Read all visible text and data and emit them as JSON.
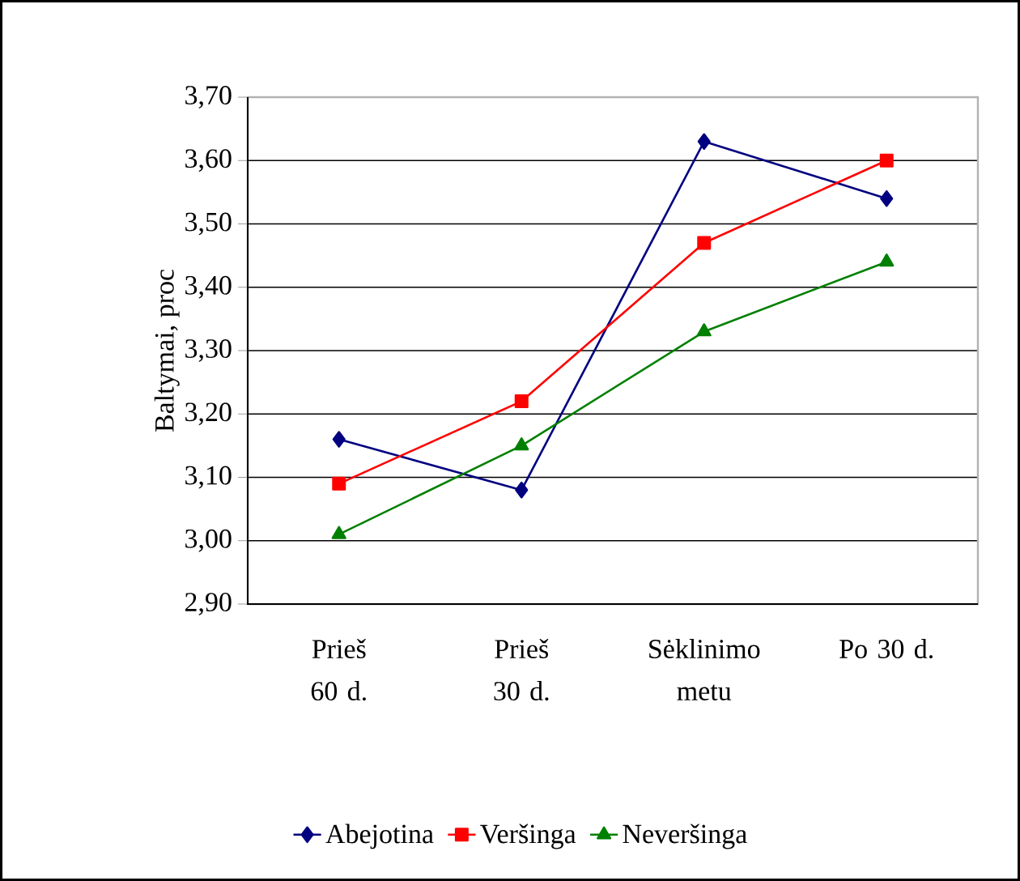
{
  "chart_data": {
    "type": "line",
    "ylabel": "Baltymai, proc",
    "categories": [
      "Prieš 60 d.",
      "Prieš 30 d.",
      "Sėklinimo metu",
      "Po 30 d."
    ],
    "series": [
      {
        "name": "Abejotina",
        "color": "#000080",
        "marker": "diamond",
        "values": [
          3.16,
          3.08,
          3.63,
          3.54
        ]
      },
      {
        "name": "Veršinga",
        "color": "#ff0000",
        "marker": "square",
        "values": [
          3.09,
          3.22,
          3.47,
          3.6
        ]
      },
      {
        "name": "Neveršinga",
        "color": "#008000",
        "marker": "triangle",
        "values": [
          3.01,
          3.15,
          3.33,
          3.44
        ]
      }
    ],
    "ylim": [
      2.9,
      3.7
    ],
    "yticks": [
      {
        "value": 2.9,
        "label": "2,90"
      },
      {
        "value": 3.0,
        "label": "3,00"
      },
      {
        "value": 3.1,
        "label": "3,10"
      },
      {
        "value": 3.2,
        "label": "3,20"
      },
      {
        "value": 3.3,
        "label": "3,30"
      },
      {
        "value": 3.4,
        "label": "3,40"
      },
      {
        "value": 3.5,
        "label": "3,50"
      },
      {
        "value": 3.6,
        "label": "3,60"
      },
      {
        "value": 3.7,
        "label": "3,70"
      }
    ],
    "grid": "y",
    "legend": "bottom",
    "line_style": "solid"
  }
}
